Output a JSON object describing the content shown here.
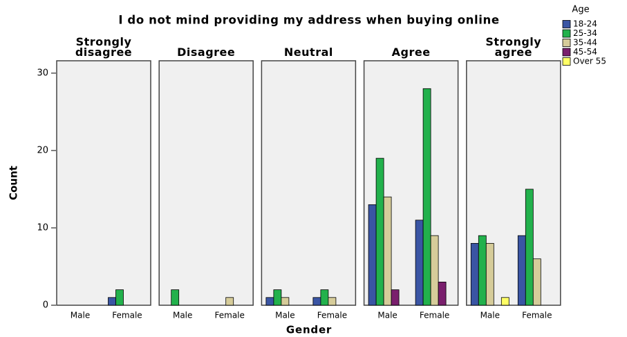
{
  "chart_data": {
    "type": "bar",
    "title": "I do not mind providing my address when buying online",
    "xlabel": "Gender",
    "ylabel": "Count",
    "legend_title": "Age",
    "panels": [
      "Strongly disagree",
      "Disagree",
      "Neutral",
      "Agree",
      "Strongly agree"
    ],
    "categories": [
      "Male",
      "Female"
    ],
    "series": [
      {
        "name": "18-24",
        "color": "#3a55a4",
        "values": [
          [
            0,
            1
          ],
          [
            0,
            0
          ],
          [
            1,
            1
          ],
          [
            13,
            11
          ],
          [
            8,
            9
          ]
        ]
      },
      {
        "name": "25-34",
        "color": "#22b14c",
        "values": [
          [
            0,
            2
          ],
          [
            2,
            0
          ],
          [
            2,
            2
          ],
          [
            19,
            28
          ],
          [
            9,
            15
          ]
        ]
      },
      {
        "name": "35-44",
        "color": "#d6cc9a",
        "values": [
          [
            0,
            0
          ],
          [
            0,
            1
          ],
          [
            1,
            1
          ],
          [
            14,
            9
          ],
          [
            8,
            6
          ]
        ]
      },
      {
        "name": "45-54",
        "color": "#7a1f6d",
        "values": [
          [
            0,
            0
          ],
          [
            0,
            0
          ],
          [
            0,
            0
          ],
          [
            2,
            3
          ],
          [
            0,
            0
          ]
        ]
      },
      {
        "name": "Over 55",
        "color": "#ffff66",
        "values": [
          [
            0,
            0
          ],
          [
            0,
            0
          ],
          [
            0,
            0
          ],
          [
            0,
            0
          ],
          [
            1,
            0
          ]
        ]
      }
    ],
    "ylim": [
      0,
      31.6
    ],
    "yticks": [
      0,
      10,
      20,
      30
    ],
    "legend": "top-right"
  }
}
